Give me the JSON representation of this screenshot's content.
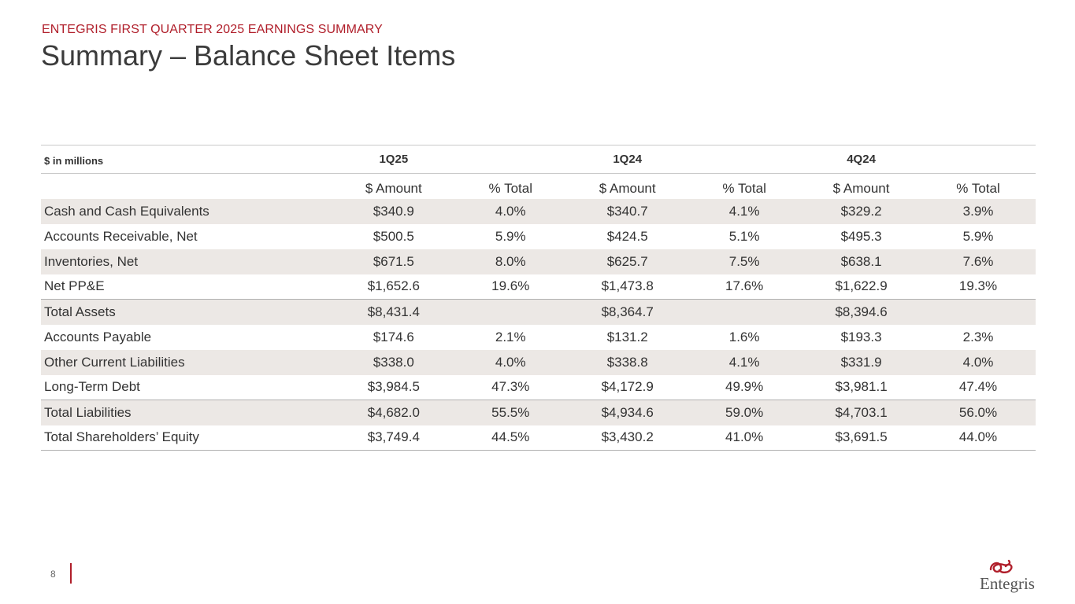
{
  "header": {
    "kicker": "ENTEGRIS FIRST QUARTER 2025 EARNINGS SUMMARY",
    "title": "Summary – Balance Sheet Items"
  },
  "table": {
    "units_label": "$ in millions",
    "periods": [
      "1Q25",
      "1Q24",
      "4Q24"
    ],
    "subheaders": {
      "amount": "$ Amount",
      "pct": "% Total"
    },
    "rows": [
      {
        "label": "Cash and Cash Equivalents",
        "values": [
          "$340.9",
          "4.0%",
          "$340.7",
          "4.1%",
          "$329.2",
          "3.9%"
        ]
      },
      {
        "label": "Accounts Receivable, Net",
        "values": [
          "$500.5",
          "5.9%",
          "$424.5",
          "5.1%",
          "$495.3",
          "5.9%"
        ]
      },
      {
        "label": "Inventories, Net",
        "values": [
          "$671.5",
          "8.0%",
          "$625.7",
          "7.5%",
          "$638.1",
          "7.6%"
        ]
      },
      {
        "label": "Net PP&E",
        "values": [
          "$1,652.6",
          "19.6%",
          "$1,473.8",
          "17.6%",
          "$1,622.9",
          "19.3%"
        ]
      },
      {
        "label": "Total Assets",
        "values": [
          "$8,431.4",
          "",
          "$8,364.7",
          "",
          "$8,394.6",
          ""
        ]
      },
      {
        "label": "Accounts Payable",
        "values": [
          "$174.6",
          "2.1%",
          "$131.2",
          "1.6%",
          "$193.3",
          "2.3%"
        ]
      },
      {
        "label": "Other Current Liabilities",
        "values": [
          "$338.0",
          "4.0%",
          "$338.8",
          "4.1%",
          "$331.9",
          "4.0%"
        ]
      },
      {
        "label": "Long-Term Debt",
        "values": [
          "$3,984.5",
          "47.3%",
          "$4,172.9",
          "49.9%",
          "$3,981.1",
          "47.4%"
        ]
      },
      {
        "label": "Total Liabilities",
        "values": [
          "$4,682.0",
          "55.5%",
          "$4,934.6",
          "59.0%",
          "$4,703.1",
          "56.0%"
        ]
      },
      {
        "label": "Total Shareholders’ Equity",
        "values": [
          "$3,749.4",
          "44.5%",
          "$3,430.2",
          "41.0%",
          "$3,691.5",
          "44.0%"
        ]
      }
    ]
  },
  "footer": {
    "page_number": "8",
    "logo_text": "Entegris",
    "logo_icon": "entegris-swirl-icon"
  },
  "colors": {
    "accent": "#b01e2a",
    "row_shade": "#ece8e5",
    "text": "#333333"
  }
}
